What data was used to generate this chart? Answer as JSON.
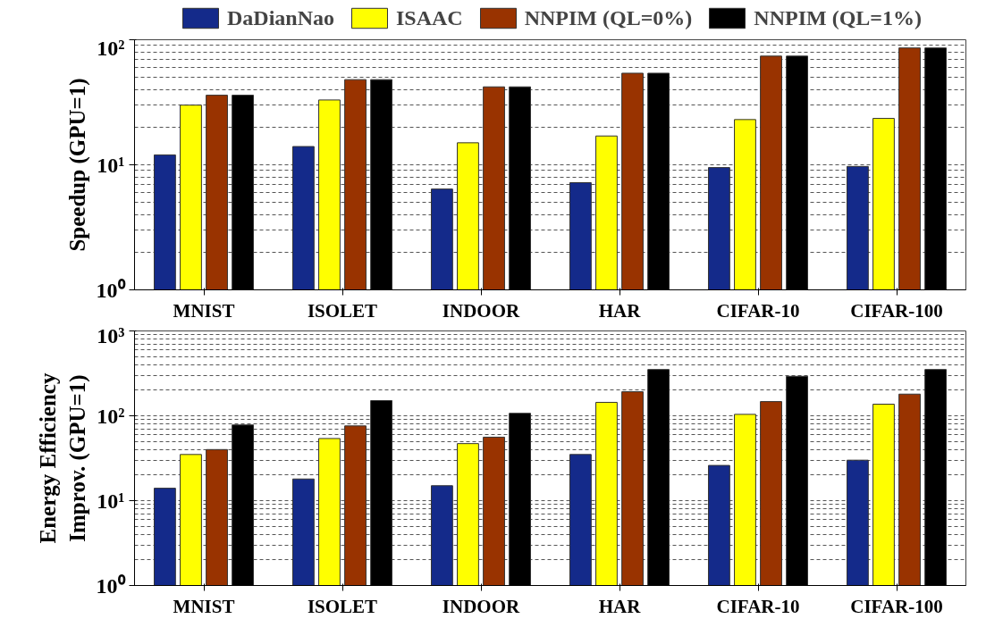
{
  "chart_data": [
    {
      "type": "bar",
      "ylabel": "Speedup (GPU=1)",
      "log": true,
      "grid": "y",
      "legend": "top",
      "categories": [
        "MNIST",
        "ISOLET",
        "INDOOR",
        "HAR",
        "CIFAR-10",
        "CIFAR-100"
      ],
      "ylim": [
        1,
        100
      ],
      "yticks": [
        {
          "value": 1,
          "label": "10⁰"
        },
        {
          "value": 10,
          "label": "10¹"
        },
        {
          "value": 100,
          "label": "10²"
        }
      ],
      "series": [
        {
          "name": "DaDianNao",
          "color": "#142a8a",
          "values": [
            12,
            14,
            6.4,
            7.2,
            9.5,
            9.7
          ]
        },
        {
          "name": "ISAAC",
          "color": "#ffff00",
          "values": [
            30,
            33,
            15,
            17,
            23,
            23.5
          ]
        },
        {
          "name": "NNPIM (QL=0%)",
          "color": "#993300",
          "values": [
            36,
            48,
            42,
            54,
            74,
            86
          ]
        },
        {
          "name": "NNPIM (QL=1%)",
          "color": "#000000",
          "values": [
            36,
            48,
            42,
            54,
            74,
            86
          ]
        }
      ]
    },
    {
      "type": "bar",
      "ylabel": "Energy Efficiency\nImprov. (GPU=1)",
      "log": true,
      "grid": "y",
      "legend": false,
      "categories": [
        "MNIST",
        "ISOLET",
        "INDOOR",
        "HAR",
        "CIFAR-10",
        "CIFAR-100"
      ],
      "ylim": [
        1,
        1000
      ],
      "yticks": [
        {
          "value": 1,
          "label": "10⁰"
        },
        {
          "value": 10,
          "label": "10¹"
        },
        {
          "value": 100,
          "label": "10²"
        },
        {
          "value": 1000,
          "label": "10³"
        }
      ],
      "series": [
        {
          "color": "#142a8a",
          "values": [
            14,
            18,
            15,
            35,
            26,
            30
          ]
        },
        {
          "color": "#ffff00",
          "values": [
            35,
            54,
            47,
            144,
            104,
            137
          ]
        },
        {
          "color": "#993300",
          "values": [
            40,
            76,
            56,
            192,
            147,
            180
          ]
        },
        {
          "color": "#000000",
          "values": [
            78,
            151,
            107,
            351,
            292,
            351
          ]
        }
      ]
    }
  ]
}
